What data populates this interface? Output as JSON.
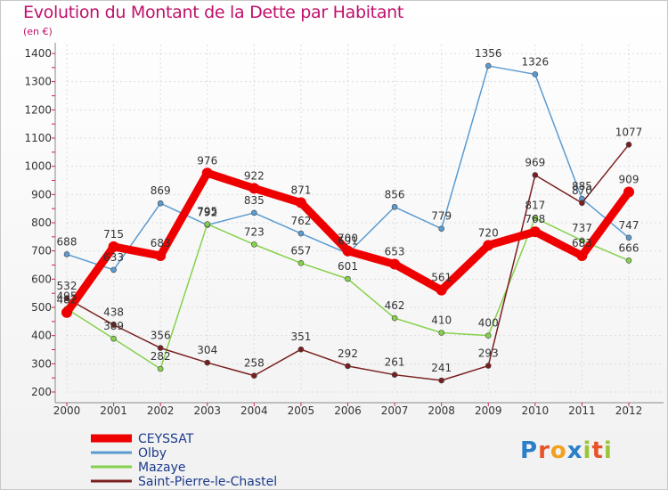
{
  "title": "Evolution du Montant de la Dette par Habitant",
  "subtitle": "(en €)",
  "logo": {
    "text": "Proxiti",
    "colors": [
      "#2a7fc8",
      "#e8542a",
      "#f2a01f",
      "#2a7fc8",
      "#9ac53a",
      "#e8542a",
      "#9ac53a"
    ]
  },
  "chart_data": {
    "type": "line",
    "categories": [
      "2000",
      "2001",
      "2002",
      "2003",
      "2004",
      "2005",
      "2006",
      "2007",
      "2008",
      "2009",
      "2010",
      "2011",
      "2012"
    ],
    "ylim": [
      200,
      1400
    ],
    "yticks": [
      200,
      300,
      400,
      500,
      600,
      700,
      800,
      900,
      1000,
      1100,
      1200,
      1300,
      1400
    ],
    "grid": true,
    "legend": "bottom-left",
    "series": [
      {
        "name": "CEYSSAT",
        "color": "#ee0000",
        "values": [
          482,
          715,
          683,
          976,
          922,
          871,
          700,
          653,
          561,
          720,
          768,
          683,
          909
        ]
      },
      {
        "name": "Olby",
        "color": "#5b9bd0",
        "values": [
          688,
          633,
          869,
          792,
          835,
          762,
          691,
          856,
          779,
          1356,
          1326,
          885,
          747
        ]
      },
      {
        "name": "Mazaye",
        "color": "#85d14c",
        "values": [
          495,
          389,
          282,
          795,
          723,
          657,
          601,
          462,
          410,
          400,
          817,
          737,
          666
        ]
      },
      {
        "name": "Saint-Pierre-le-Chastel",
        "color": "#7a1f1f",
        "values": [
          532,
          438,
          356,
          304,
          258,
          351,
          292,
          261,
          241,
          293,
          969,
          870,
          1077
        ]
      }
    ]
  }
}
